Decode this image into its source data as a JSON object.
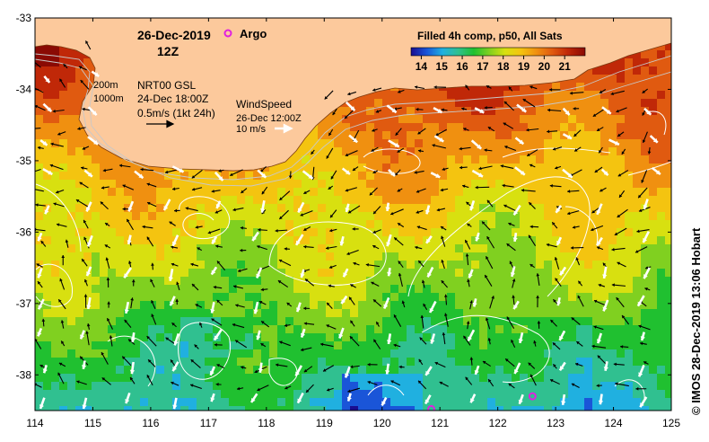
{
  "chart_data": {
    "type": "heatmap",
    "title": "Filled 4h comp, p50, All Sats",
    "date": "26-Dec-2019",
    "time": "12Z",
    "argo_label": "Argo",
    "colorbar_ticks": [
      "14",
      "15",
      "16",
      "17",
      "18",
      "19",
      "20",
      "21"
    ],
    "colorbar_range": [
      13.5,
      22
    ],
    "x_ticks": [
      "114",
      "115",
      "116",
      "117",
      "118",
      "119",
      "120",
      "121",
      "122",
      "123",
      "124",
      "125"
    ],
    "y_ticks": [
      "-33",
      "-34",
      "-35",
      "-36",
      "-37",
      "-38"
    ],
    "xlim": [
      114,
      125
    ],
    "ylim": [
      -38.5,
      -33
    ],
    "isobath_labels": [
      "200m",
      "1000m"
    ],
    "current_legend": {
      "source": "NRT00 GSL",
      "valid": "24-Dec 18:00Z",
      "scale": "0.5m/s (1kt 24h)"
    },
    "wind_legend": {
      "title": "WindSpeed",
      "valid": "26-Dec 12:00Z",
      "scale": "10 m/s"
    },
    "argo_floats": [
      {
        "lon": 120.85,
        "lat": -38.48
      },
      {
        "lon": 122.6,
        "lat": -38.3
      }
    ],
    "credit": "© IMOS 28-Dec-2019 13:06 Hobart"
  },
  "colors": {
    "land": "#fcc99c",
    "argo": "#e020e0",
    "palette": [
      "#1a0d90",
      "#1a55d8",
      "#20b0e0",
      "#30c090",
      "#20c030",
      "#80d020",
      "#d8e010",
      "#f4c410",
      "#f09010",
      "#e05a10",
      "#c02808",
      "#8a0a04"
    ]
  }
}
